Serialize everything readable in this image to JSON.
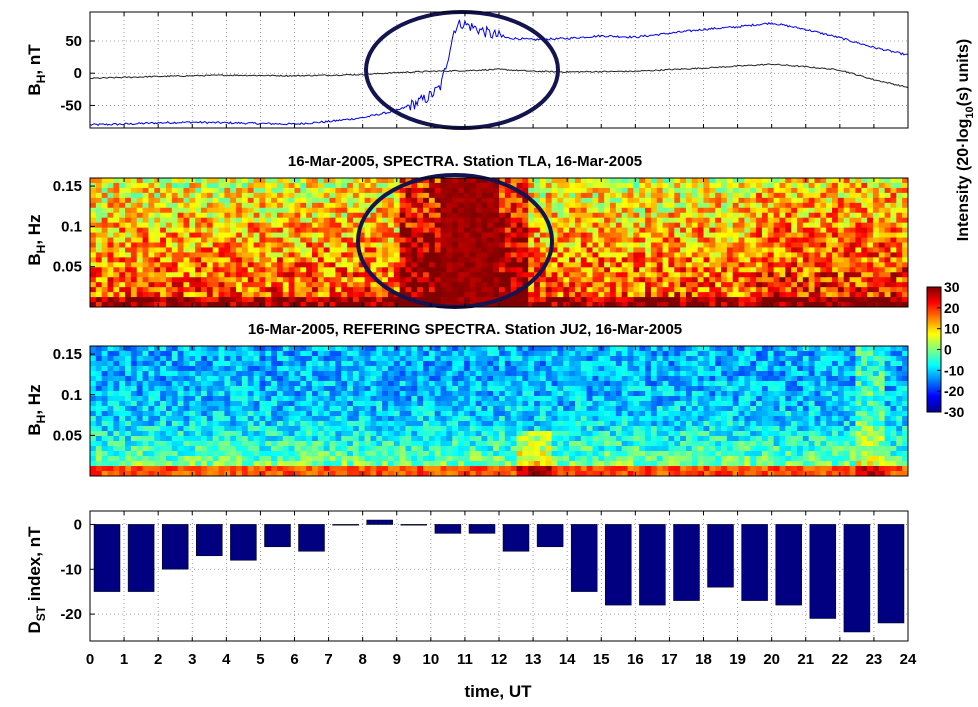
{
  "chart_data": [
    {
      "type": "line",
      "panel": "magnetogram",
      "ylabel_main": "B",
      "ylabel_sub": "H",
      "ylabel_rest": ", nT",
      "yticks": [
        "50",
        "0",
        "-50"
      ],
      "ylim": [
        -85,
        95
      ],
      "xlim": [
        0,
        24
      ],
      "grid": true,
      "series": [
        {
          "color": "#0000ee",
          "points": [
            [
              0,
              -80
            ],
            [
              1,
              -79
            ],
            [
              2,
              -77
            ],
            [
              3,
              -76
            ],
            [
              4,
              -77
            ],
            [
              5,
              -78
            ],
            [
              6,
              -79
            ],
            [
              7,
              -75
            ],
            [
              8,
              -69
            ],
            [
              9,
              -58
            ],
            [
              9.5,
              -48
            ],
            [
              9.9,
              -38
            ],
            [
              10.1,
              -30
            ],
            [
              10.3,
              -20
            ],
            [
              10.5,
              25
            ],
            [
              10.7,
              70
            ],
            [
              10.9,
              78
            ],
            [
              11.1,
              74
            ],
            [
              11.4,
              68
            ],
            [
              11.8,
              60
            ],
            [
              12.2,
              55
            ],
            [
              13,
              52
            ],
            [
              14,
              54
            ],
            [
              15,
              58
            ],
            [
              16,
              56
            ],
            [
              17,
              62
            ],
            [
              18,
              68
            ],
            [
              19,
              72
            ],
            [
              20,
              78
            ],
            [
              21,
              68
            ],
            [
              22,
              55
            ],
            [
              23,
              40
            ],
            [
              24,
              28
            ]
          ]
        },
        {
          "color": "#222222",
          "points": [
            [
              0,
              -8
            ],
            [
              2,
              -5
            ],
            [
              4,
              -3
            ],
            [
              6,
              -4
            ],
            [
              8,
              -2
            ],
            [
              9,
              1
            ],
            [
              10,
              3
            ],
            [
              11,
              4
            ],
            [
              12,
              6
            ],
            [
              13,
              3
            ],
            [
              14,
              2
            ],
            [
              16,
              3
            ],
            [
              18,
              8
            ],
            [
              20,
              14
            ],
            [
              21,
              10
            ],
            [
              22,
              5
            ],
            [
              23,
              -10
            ],
            [
              24,
              -22
            ]
          ]
        }
      ],
      "annotation": "ellipse"
    },
    {
      "type": "heatmap",
      "panel": "spectra-tla",
      "title": "16-Mar-2005, SPECTRA. Station TLA, 16-Mar-2005",
      "ylabel_main": "B",
      "ylabel_sub": "H",
      "ylabel_rest": ", Hz",
      "yticks": [
        "0.15",
        "0.1",
        "0.05"
      ],
      "ylim": [
        0,
        0.16
      ],
      "xlim": [
        0,
        24
      ],
      "annotation": "ellipse"
    },
    {
      "type": "heatmap",
      "panel": "spectra-ju2",
      "title": "16-Mar-2005, REFERING SPECTRA. Station JU2, 16-Mar-2005",
      "ylabel_main": "B",
      "ylabel_sub": "H",
      "ylabel_rest": ", Hz",
      "yticks": [
        "0.15",
        "0.1",
        "0.05"
      ],
      "ylim": [
        0,
        0.16
      ],
      "xlim": [
        0,
        24
      ]
    },
    {
      "type": "bar",
      "panel": "dst",
      "ylabel_main": "D",
      "ylabel_sub": "ST",
      "ylabel_rest": " index, nT",
      "yticks": [
        "0",
        "-10",
        "-20"
      ],
      "ylim": [
        -26,
        3
      ],
      "xlim": [
        0,
        24
      ],
      "bar_color": "#000080",
      "categories": [
        0,
        1,
        2,
        3,
        4,
        5,
        6,
        7,
        8,
        9,
        10,
        11,
        12,
        13,
        14,
        15,
        16,
        17,
        18,
        19,
        20,
        21,
        22,
        23
      ],
      "values": [
        -15,
        -15,
        -10,
        -7,
        -8,
        -5,
        -6,
        0,
        1,
        0,
        -2,
        -2,
        -6,
        -5,
        -15,
        -18,
        -18,
        -17,
        -14,
        -17,
        -18,
        -21,
        -24,
        -22
      ]
    }
  ],
  "xaxis": {
    "ticks": [
      "0",
      "1",
      "2",
      "3",
      "4",
      "5",
      "6",
      "7",
      "8",
      "9",
      "10",
      "11",
      "12",
      "13",
      "14",
      "15",
      "16",
      "17",
      "18",
      "19",
      "20",
      "21",
      "22",
      "23",
      "24"
    ],
    "label": "time, UT"
  },
  "colorbar": {
    "label_a": "Intensity (20·log",
    "label_sub": "10",
    "label_b": "(s) units)",
    "ticks": [
      "30",
      "20",
      "10",
      "0",
      "-10",
      "-20",
      "-30"
    ],
    "range": [
      -30,
      30
    ]
  }
}
